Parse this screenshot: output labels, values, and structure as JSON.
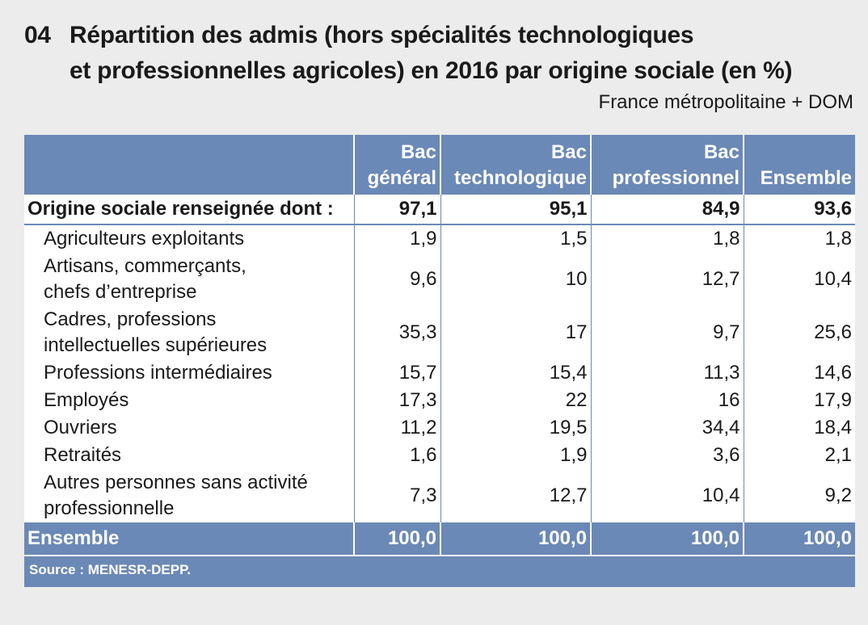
{
  "title": {
    "number": "04",
    "line1": "Répartition des admis (hors spécialités technologiques",
    "line2": "et professionnelles agricoles) en 2016 par origine sociale (en %)"
  },
  "subtitle": "France métropolitaine + DOM",
  "table": {
    "headers": [
      [
        "Bac",
        "général"
      ],
      [
        "Bac",
        "technologique"
      ],
      [
        "Bac",
        "professionnel"
      ],
      [
        "",
        "Ensemble"
      ]
    ],
    "first_row": {
      "label": "Origine sociale renseignée dont :",
      "values": [
        "97,1",
        "95,1",
        "84,9",
        "93,6"
      ]
    },
    "rows": [
      {
        "label": [
          "Agriculteurs exploitants"
        ],
        "values": [
          "1,9",
          "1,5",
          "1,8",
          "1,8"
        ]
      },
      {
        "label": [
          "Artisans, commerçants,",
          "chefs d’entreprise"
        ],
        "values": [
          "9,6",
          "10",
          "12,7",
          "10,4"
        ]
      },
      {
        "label": [
          "Cadres, professions",
          "intellectuelles supérieures"
        ],
        "values": [
          "35,3",
          "17",
          "9,7",
          "25,6"
        ]
      },
      {
        "label": [
          "Professions intermédiaires"
        ],
        "values": [
          "15,7",
          "15,4",
          "11,3",
          "14,6"
        ]
      },
      {
        "label": [
          "Employés"
        ],
        "values": [
          "17,3",
          "22",
          "16",
          "17,9"
        ]
      },
      {
        "label": [
          "Ouvriers"
        ],
        "values": [
          "11,2",
          "19,5",
          "34,4",
          "18,4"
        ]
      },
      {
        "label": [
          "Retraités"
        ],
        "values": [
          "1,6",
          "1,9",
          "3,6",
          "2,1"
        ]
      },
      {
        "label": [
          "Autres personnes sans activité",
          "professionnelle"
        ],
        "values": [
          "7,3",
          "12,7",
          "10,4",
          "9,2"
        ]
      }
    ],
    "total": {
      "label": "Ensemble",
      "values": [
        "100,0",
        "100,0",
        "100,0",
        "100,0"
      ]
    },
    "source": "Source : MENESR-DEPP."
  },
  "colors": {
    "header_blue": "#6b89b6",
    "background": "#ececec"
  }
}
